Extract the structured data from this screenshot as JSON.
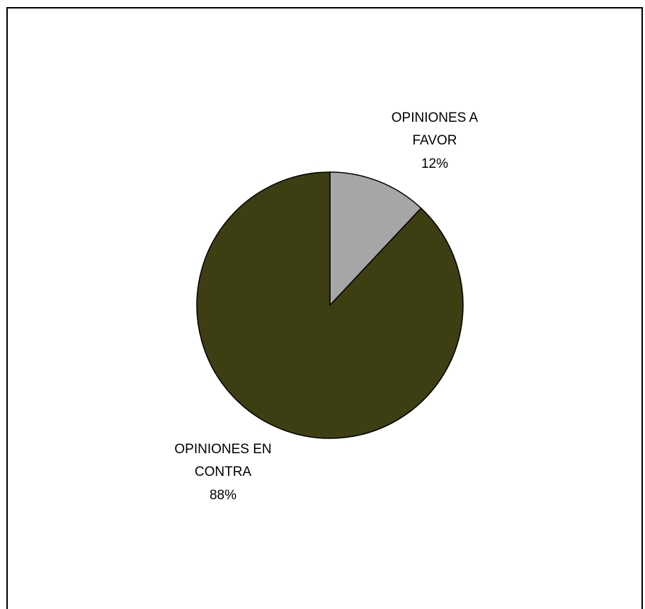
{
  "chart_data": {
    "type": "pie",
    "title": "",
    "categories": [
      "OPINIONES A FAVOR",
      "OPINIONES EN CONTRA"
    ],
    "values": [
      12,
      88
    ],
    "unit": "%",
    "colors": [
      "#a6a6a6",
      "#3e3e13"
    ],
    "labels": [
      {
        "lines": [
          "OPINIONES A",
          "FAVOR",
          "12%"
        ]
      },
      {
        "lines": [
          "OPINIONES EN",
          "CONTRA",
          "88%"
        ]
      }
    ],
    "legend": "none",
    "start_angle": "12 o'clock",
    "direction": "clockwise"
  }
}
